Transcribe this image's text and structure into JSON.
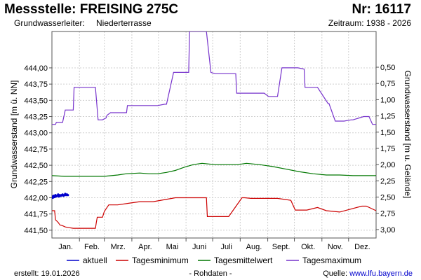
{
  "header": {
    "title": "Messstelle: FREISING 275C",
    "station_number": "Nr: 16117",
    "aquifer_label": "Grundwasserleiter:",
    "aquifer_value": "Niederterrasse",
    "period": "Zeitraum: 1938 - 2026"
  },
  "footer": {
    "created_label": "erstellt:",
    "created_date": "19.01.2026",
    "raw_data": "- Rohdaten -",
    "source_label": "Quelle:",
    "source_link": "www.lfu.bayern.de"
  },
  "chart_data": {
    "type": "line",
    "ylabel": "Grundwasserstand [m ü. NN]",
    "y2label": "Grundwasserstand [m u. Gelände]",
    "ylim": [
      441.38,
      444.56
    ],
    "y2lim": [
      3.13,
      -0.05
    ],
    "y_ticks": [
      "441,50",
      "441,75",
      "442,00",
      "442,25",
      "442,50",
      "442,75",
      "443,00",
      "443,25",
      "443,50",
      "443,75",
      "444,00"
    ],
    "y_tick_values": [
      441.5,
      441.75,
      442.0,
      442.25,
      442.5,
      442.75,
      443.0,
      443.25,
      443.5,
      443.75,
      444.0
    ],
    "y2_ticks": [
      "0,50",
      "0,75",
      "1,00",
      "1,25",
      "1,50",
      "1,75",
      "2,00",
      "2,25",
      "2,50",
      "2,75",
      "3,00"
    ],
    "y2_tick_values": [
      0.5,
      0.75,
      1.0,
      1.25,
      1.5,
      1.75,
      2.0,
      2.25,
      2.5,
      2.75,
      3.0
    ],
    "x_ticks": [
      "Jan.",
      "Feb.",
      "Mrz.",
      "Apr.",
      "Mai",
      "Juni",
      "Juli",
      "Aug.",
      "Sept.",
      "Okt.",
      "Nov.",
      "Dez."
    ],
    "xlim": [
      1,
      366
    ],
    "grid": true,
    "legend_position": "bottom",
    "series": [
      {
        "name": "aktuell",
        "color": "#0000cc",
        "style": "points",
        "x": [
          1,
          2,
          3,
          4,
          5,
          6,
          7,
          8,
          9,
          10,
          11,
          12,
          13,
          14,
          15,
          16,
          17,
          18,
          19
        ],
        "y": [
          442.02,
          442.0,
          442.03,
          442.01,
          442.04,
          442.02,
          442.03,
          442.05,
          442.02,
          442.04,
          442.03,
          442.04,
          442.05,
          442.03,
          442.04,
          442.06,
          442.04,
          442.05,
          442.04
        ]
      },
      {
        "name": "Tagesminimum",
        "color": "#cc0000",
        "style": "line",
        "x": [
          1,
          4,
          5,
          8,
          10,
          13,
          16,
          20,
          25,
          35,
          45,
          50,
          51,
          52,
          55,
          58,
          60,
          65,
          75,
          90,
          100,
          115,
          140,
          145,
          160,
          175,
          176,
          195,
          200,
          215,
          218,
          225,
          230,
          255,
          270,
          275,
          285,
          288,
          300,
          310,
          325,
          350,
          355,
          366
        ],
        "y": [
          441.8,
          441.8,
          441.66,
          441.62,
          441.58,
          441.57,
          441.55,
          441.54,
          441.53,
          441.53,
          441.53,
          441.53,
          441.62,
          441.7,
          441.7,
          441.7,
          441.79,
          441.89,
          441.89,
          441.92,
          441.94,
          441.94,
          442.0,
          442.0,
          442.0,
          442.0,
          441.71,
          441.71,
          441.71,
          442.0,
          442.0,
          441.99,
          441.99,
          441.99,
          441.96,
          441.81,
          441.81,
          441.81,
          441.85,
          441.8,
          441.78,
          441.87,
          441.87,
          441.8
        ]
      },
      {
        "name": "Tagesmittelwert",
        "color": "#007700",
        "style": "line",
        "x": [
          1,
          15,
          30,
          50,
          60,
          75,
          85,
          100,
          110,
          120,
          130,
          140,
          150,
          160,
          170,
          185,
          200,
          210,
          220,
          235,
          250,
          265,
          280,
          295,
          310,
          325,
          340,
          355,
          366
        ],
        "y": [
          442.34,
          442.33,
          442.33,
          442.33,
          442.33,
          442.35,
          442.37,
          442.38,
          442.37,
          442.37,
          442.39,
          442.42,
          442.47,
          442.51,
          442.53,
          442.51,
          442.51,
          442.51,
          442.53,
          442.51,
          442.48,
          442.44,
          442.4,
          442.37,
          442.35,
          442.35,
          442.34,
          442.34,
          442.34
        ]
      },
      {
        "name": "Tagesmaximum",
        "color": "#7733cc",
        "style": "line",
        "x": [
          1,
          5,
          6,
          12,
          13,
          16,
          17,
          25,
          26,
          49,
          50,
          53,
          58,
          62,
          63,
          67,
          70,
          85,
          86,
          100,
          110,
          120,
          128,
          130,
          138,
          139,
          142,
          155,
          156,
          158,
          159,
          162,
          165,
          175,
          180,
          185,
          190,
          200,
          208,
          209,
          215,
          219,
          220,
          240,
          245,
          255,
          260,
          262,
          275,
          278,
          285,
          286,
          292,
          295,
          300,
          312,
          313,
          320,
          325,
          330,
          338,
          340,
          352,
          358,
          362,
          366
        ],
        "y": [
          443.13,
          443.13,
          443.16,
          443.16,
          443.16,
          443.35,
          443.35,
          443.35,
          443.7,
          443.7,
          443.7,
          443.2,
          443.2,
          443.23,
          443.27,
          443.31,
          443.31,
          443.31,
          443.42,
          443.42,
          443.42,
          443.42,
          443.44,
          443.44,
          443.93,
          443.93,
          443.93,
          443.93,
          444.56,
          444.56,
          444.56,
          444.56,
          444.56,
          444.56,
          443.93,
          443.91,
          443.91,
          443.91,
          443.91,
          443.61,
          443.61,
          443.61,
          443.61,
          443.61,
          443.56,
          443.56,
          444.0,
          444.0,
          444.0,
          444.0,
          443.98,
          443.7,
          443.7,
          443.7,
          443.7,
          443.45,
          443.45,
          443.18,
          443.18,
          443.18,
          443.2,
          443.2,
          443.25,
          443.25,
          443.13,
          443.13
        ]
      }
    ]
  }
}
